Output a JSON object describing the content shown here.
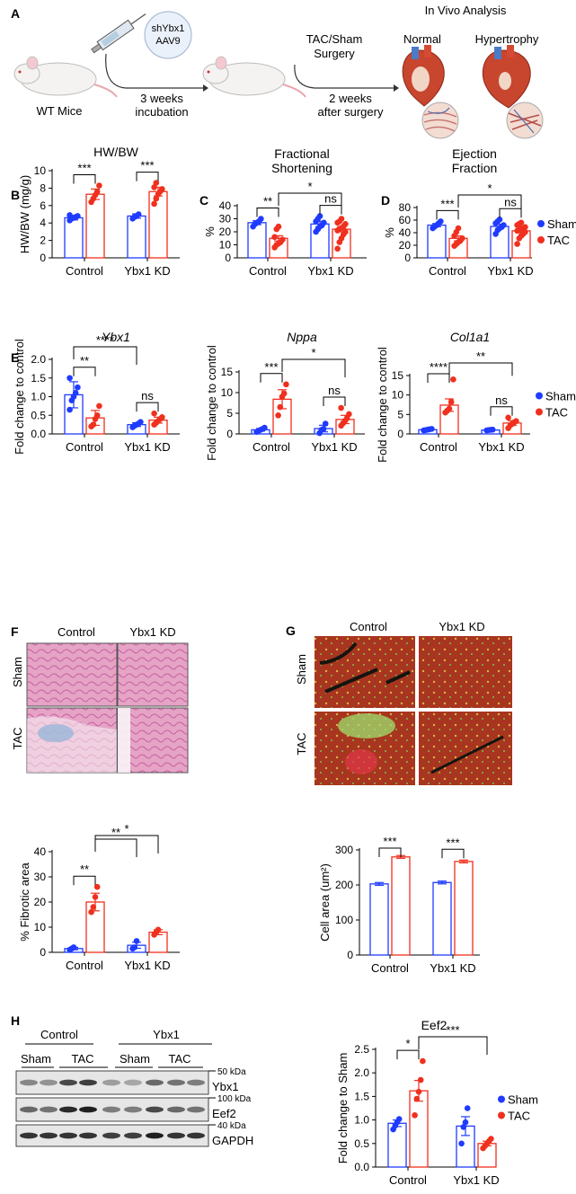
{
  "colors": {
    "sham": "#1f3bff",
    "tac": "#f0301e",
    "mouse": "#f5f3f1",
    "heart": "#c8452e"
  },
  "panelA": {
    "letter": "A",
    "virus_label_1": "shYbx1",
    "virus_label_2": "AAV9",
    "mouse_label": "WT Mice",
    "step1_label_1": "3 weeks",
    "step1_label_2": "incubation",
    "surgery_label_1": "TAC/Sham",
    "surgery_label_2": "Surgery",
    "step2_label_1": "2 weeks",
    "step2_label_2": "after surgery",
    "analysis_title": "In Vivo Analysis",
    "normal_label": "Normal",
    "hypertrophy_label": "Hypertrophy"
  },
  "legend": {
    "sham": "Sham",
    "tac": "TAC"
  },
  "panelF": {
    "letter": "F",
    "col_control": "Control",
    "col_kd": "Ybx1 KD",
    "row_sham": "Sham",
    "row_tac": "TAC"
  },
  "panelG": {
    "letter": "G",
    "col_control": "Control",
    "col_kd": "Ybx1 KD",
    "row_sham": "Sham",
    "row_tac": "TAC"
  },
  "panelH": {
    "letter": "H",
    "group_control": "Control",
    "group_ybx1": "Ybx1",
    "sham1": "Sham",
    "tac1": "TAC",
    "sham2": "Sham",
    "tac2": "TAC",
    "kda_50": "50 kDa",
    "kda_100": "100 kDa",
    "kda_40": "40 kDa",
    "band_ybx1": "Ybx1",
    "band_eef2": "Eef2",
    "band_gapdh": "GAPDH"
  },
  "chart_data": [
    {
      "id": "B",
      "letter": "B",
      "type": "bar",
      "title": "HW/BW",
      "italic": false,
      "ylabel": "HW/BW (mg/g)",
      "ylim": [
        0,
        10
      ],
      "ticks": [
        0,
        2,
        4,
        6,
        8,
        10
      ],
      "categories": [
        "Control",
        "Ybx1 KD"
      ],
      "series": [
        {
          "name": "Sham",
          "values": [
            4.6,
            4.8
          ]
        },
        {
          "name": "TAC",
          "values": [
            7.3,
            7.6
          ]
        }
      ],
      "errors": [
        [
          0.25,
          0.25
        ],
        [
          0.6,
          0.5
        ]
      ],
      "points": [
        [
          [
            4.3,
            4.5,
            4.6,
            4.7,
            4.8,
            4.9
          ],
          [
            4.5,
            4.7,
            4.8,
            5.0
          ]
        ],
        [
          [
            6.4,
            6.8,
            7.2,
            7.6,
            8.3
          ],
          [
            6.2,
            6.8,
            7.3,
            7.6,
            7.9,
            8.1,
            8.6
          ]
        ]
      ],
      "significance": [
        {
          "from": [
            0,
            0
          ],
          "to": [
            0,
            1
          ],
          "label": "***"
        },
        {
          "from": [
            1,
            0
          ],
          "to": [
            1,
            1
          ],
          "label": "***"
        }
      ]
    },
    {
      "id": "C",
      "letter": "C",
      "type": "bar",
      "title": "Fractional\nShortening",
      "italic": false,
      "ylabel": "%",
      "ylim": [
        0,
        40
      ],
      "ticks": [
        0,
        10,
        20,
        30,
        40
      ],
      "categories": [
        "Control",
        "Ybx1 KD"
      ],
      "series": [
        {
          "name": "Sham",
          "values": [
            27,
            26
          ]
        },
        {
          "name": "TAC",
          "values": [
            15,
            22
          ]
        }
      ],
      "errors": [
        [
          1.5,
          2
        ],
        [
          2,
          2
        ]
      ],
      "points": [
        [
          [
            24,
            26,
            27,
            28,
            30
          ],
          [
            20,
            22,
            24,
            25,
            27,
            28,
            30,
            32
          ]
        ],
        [
          [
            8,
            10,
            11,
            12,
            14,
            16,
            22,
            24
          ],
          [
            7,
            12,
            15,
            18,
            20,
            21,
            22,
            23,
            24,
            26,
            27,
            28,
            30
          ]
        ]
      ],
      "significance": [
        {
          "from": [
            0,
            0
          ],
          "to": [
            0,
            1
          ],
          "label": "**"
        },
        {
          "from": [
            1,
            0
          ],
          "to": [
            1,
            1
          ],
          "label": "ns"
        },
        {
          "from": [
            0,
            1
          ],
          "to": [
            1,
            1
          ],
          "label": "*"
        }
      ]
    },
    {
      "id": "D",
      "letter": "D",
      "type": "bar",
      "title": "Ejection\nFraction",
      "italic": false,
      "ylabel": "%",
      "ylim": [
        0,
        80
      ],
      "ticks": [
        0,
        20,
        40,
        60,
        80
      ],
      "categories": [
        "Control",
        "Ybx1 KD"
      ],
      "series": [
        {
          "name": "Sham",
          "values": [
            52,
            50
          ]
        },
        {
          "name": "TAC",
          "values": [
            31,
            43
          ]
        }
      ],
      "errors": [
        [
          2.5,
          3.5
        ],
        [
          4,
          3
        ]
      ],
      "points": [
        [
          [
            47,
            50,
            52,
            55,
            58
          ],
          [
            38,
            44,
            47,
            49,
            52,
            55,
            58,
            61
          ]
        ],
        [
          [
            19,
            22,
            25,
            27,
            31,
            35,
            41,
            47
          ],
          [
            22,
            31,
            35,
            38,
            41,
            43,
            44,
            46,
            47,
            49,
            52,
            54,
            56
          ]
        ]
      ],
      "significance": [
        {
          "from": [
            0,
            0
          ],
          "to": [
            0,
            1
          ],
          "label": "***"
        },
        {
          "from": [
            1,
            0
          ],
          "to": [
            1,
            1
          ],
          "label": "ns"
        },
        {
          "from": [
            0,
            1
          ],
          "to": [
            1,
            1
          ],
          "label": "*"
        }
      ],
      "legend": true
    },
    {
      "id": "E1",
      "letter": "E",
      "type": "bar",
      "title": "Ybx1",
      "italic": true,
      "ylabel": "Fold change to control",
      "ylim": [
        0,
        2.0
      ],
      "ticks": [
        0.0,
        0.5,
        1.0,
        1.5,
        2.0
      ],
      "categories": [
        "Control",
        "Ybx1 KD"
      ],
      "series": [
        {
          "name": "Sham",
          "values": [
            1.05,
            0.25
          ]
        },
        {
          "name": "TAC",
          "values": [
            0.43,
            0.37
          ]
        }
      ],
      "errors": [
        [
          0.35,
          0.05
        ],
        [
          0.2,
          0.08
        ]
      ],
      "points": [
        [
          [
            0.65,
            0.9,
            1.0,
            1.1,
            1.25,
            1.5
          ],
          [
            0.18,
            0.22,
            0.25,
            0.28,
            0.32
          ]
        ],
        [
          [
            0.2,
            0.25,
            0.4,
            0.5,
            0.75
          ],
          [
            0.25,
            0.3,
            0.35,
            0.4,
            0.45,
            0.55
          ]
        ]
      ],
      "significance": [
        {
          "from": [
            0,
            0
          ],
          "to": [
            0,
            1
          ],
          "label": "**"
        },
        {
          "from": [
            1,
            0
          ],
          "to": [
            1,
            1
          ],
          "label": "ns"
        },
        {
          "from": [
            0,
            0
          ],
          "to": [
            1,
            0
          ],
          "label": "****"
        }
      ]
    },
    {
      "id": "E2",
      "letter": "",
      "type": "bar",
      "title": "Nppa",
      "italic": true,
      "ylabel": "Fold change to control",
      "ylim": [
        0,
        15
      ],
      "ticks": [
        0,
        5,
        10,
        15
      ],
      "categories": [
        "Control",
        "Ybx1 KD"
      ],
      "series": [
        {
          "name": "Sham",
          "values": [
            1.0,
            1.3
          ]
        },
        {
          "name": "TAC",
          "values": [
            8.4,
            3.5
          ]
        }
      ],
      "errors": [
        [
          0.3,
          0.8
        ],
        [
          2.3,
          1.0
        ]
      ],
      "points": [
        [
          [
            0.5,
            0.8,
            1.0,
            1.2,
            1.5
          ],
          [
            0.2,
            1.0,
            1.2,
            2.5
          ]
        ],
        [
          [
            4.5,
            6.5,
            9.0,
            9.8,
            12.0
          ],
          [
            2.0,
            2.6,
            3.2,
            3.8,
            4.8,
            6.3
          ]
        ]
      ],
      "significance": [
        {
          "from": [
            0,
            0
          ],
          "to": [
            0,
            1
          ],
          "label": "***"
        },
        {
          "from": [
            1,
            0
          ],
          "to": [
            1,
            1
          ],
          "label": "ns"
        },
        {
          "from": [
            0,
            1
          ],
          "to": [
            1,
            1
          ],
          "label": "*"
        }
      ]
    },
    {
      "id": "E3",
      "letter": "",
      "type": "bar",
      "title": "Col1a1",
      "italic": true,
      "ylabel": "Fold change to control",
      "ylim": [
        0,
        15
      ],
      "ticks": [
        0,
        5,
        10,
        15
      ],
      "categories": [
        "Control",
        "Ybx1 KD"
      ],
      "series": [
        {
          "name": "Sham",
          "values": [
            1.1,
            1.0
          ]
        },
        {
          "name": "TAC",
          "values": [
            7.4,
            2.8
          ]
        }
      ],
      "errors": [
        [
          0.2,
          0.1
        ],
        [
          1.6,
          0.6
        ]
      ],
      "points": [
        [
          [
            0.9,
            1.0,
            1.1,
            1.2,
            1.3
          ],
          [
            0.9,
            1.0,
            1.05,
            1.1
          ]
        ],
        [
          [
            5.5,
            6.0,
            6.5,
            8.2,
            14.0
          ],
          [
            1.5,
            2.2,
            2.6,
            3.0,
            3.3,
            4.2
          ]
        ]
      ],
      "significance": [
        {
          "from": [
            0,
            0
          ],
          "to": [
            0,
            1
          ],
          "label": "****"
        },
        {
          "from": [
            1,
            0
          ],
          "to": [
            1,
            1
          ],
          "label": "ns"
        },
        {
          "from": [
            0,
            1
          ],
          "to": [
            1,
            1
          ],
          "label": "**"
        }
      ],
      "legend": true
    },
    {
      "id": "F",
      "letter": "",
      "type": "bar",
      "title": "",
      "italic": false,
      "ylabel": "% Fibrotic area",
      "ylim": [
        0,
        40
      ],
      "ticks": [
        0,
        10,
        20,
        30,
        40
      ],
      "categories": [
        "Control",
        "Ybx1 KD"
      ],
      "series": [
        {
          "name": "Sham",
          "values": [
            1.5,
            2.8
          ]
        },
        {
          "name": "TAC",
          "values": [
            20,
            8
          ]
        }
      ],
      "errors": [
        [
          0.5,
          1.2
        ],
        [
          3.5,
          1.0
        ]
      ],
      "points": [
        [
          [
            1.0,
            1.5,
            2.0
          ],
          [
            1.5,
            2.0,
            4.5
          ]
        ],
        [
          [
            16,
            18,
            22,
            26
          ],
          [
            7,
            8,
            9
          ]
        ]
      ],
      "significance": [
        {
          "from": [
            0,
            0
          ],
          "to": [
            0,
            1
          ],
          "label": "**"
        },
        {
          "from": [
            0,
            1
          ],
          "to": [
            1,
            0
          ],
          "label": "**"
        },
        {
          "from": [
            0,
            1
          ],
          "to": [
            1,
            1
          ],
          "label": "*"
        }
      ]
    },
    {
      "id": "G",
      "letter": "",
      "type": "bar",
      "title": "",
      "italic": false,
      "ylabel": "Cell area (um²)",
      "ylim": [
        0,
        300
      ],
      "ticks": [
        0,
        100,
        200,
        300
      ],
      "categories": [
        "Control",
        "Ybx1 KD"
      ],
      "series": [
        {
          "name": "Sham",
          "values": [
            203,
            207
          ]
        },
        {
          "name": "TAC",
          "values": [
            280,
            267
          ]
        }
      ],
      "errors": [
        [
          4,
          4
        ],
        [
          4,
          4
        ]
      ],
      "points": [
        [
          [],
          []
        ],
        [
          [],
          []
        ]
      ],
      "significance": [
        {
          "from": [
            0,
            0
          ],
          "to": [
            0,
            1
          ],
          "label": "***"
        },
        {
          "from": [
            1,
            0
          ],
          "to": [
            1,
            1
          ],
          "label": "***"
        }
      ]
    },
    {
      "id": "H",
      "letter": "",
      "type": "bar",
      "title": "Eef2",
      "italic": false,
      "ylabel": "Fold change to Sham",
      "ylim": [
        0,
        2.5
      ],
      "ticks": [
        0.0,
        0.5,
        1.0,
        1.5,
        2.0,
        2.5
      ],
      "categories": [
        "Control",
        "Ybx1 KD"
      ],
      "series": [
        {
          "name": "Sham",
          "values": [
            0.93,
            0.87
          ]
        },
        {
          "name": "TAC",
          "values": [
            1.62,
            0.5
          ]
        }
      ],
      "errors": [
        [
          0.07,
          0.2
        ],
        [
          0.22,
          0.05
        ]
      ],
      "points": [
        [
          [
            0.8,
            0.88,
            0.95,
            1.02
          ],
          [
            0.5,
            0.85,
            0.95,
            1.25
          ]
        ],
        [
          [
            1.1,
            1.45,
            1.6,
            1.85,
            2.25
          ],
          [
            0.4,
            0.45,
            0.5,
            0.55,
            0.6
          ]
        ]
      ],
      "significance": [
        {
          "from": [
            0,
            0
          ],
          "to": [
            0,
            1
          ],
          "label": "*"
        },
        {
          "from": [
            0,
            1
          ],
          "to": [
            1,
            1
          ],
          "label": "***"
        }
      ],
      "legend": true
    }
  ]
}
